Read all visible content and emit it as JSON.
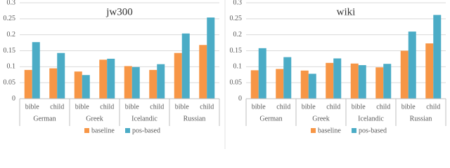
{
  "chart_data": [
    {
      "type": "bar",
      "title": "jw300",
      "groups": [
        "German",
        "Greek",
        "Icelandic",
        "Russian"
      ],
      "categories": [
        "bible",
        "child",
        "bible",
        "child",
        "bible",
        "child",
        "bible",
        "child"
      ],
      "series": [
        {
          "name": "baseline",
          "color": "#f79646",
          "values": [
            0.09,
            0.095,
            0.085,
            0.122,
            0.102,
            0.09,
            0.143,
            0.168
          ]
        },
        {
          "name": "pos-based",
          "color": "#4bacc6",
          "values": [
            0.177,
            0.143,
            0.074,
            0.125,
            0.099,
            0.108,
            0.204,
            0.254
          ]
        }
      ],
      "ylim": [
        0,
        0.3
      ],
      "yticks": [
        0,
        0.05,
        0.1,
        0.15,
        0.2,
        0.25,
        0.3
      ],
      "grid": true,
      "legend": "bottom"
    },
    {
      "type": "bar",
      "title": "wiki",
      "groups": [
        "German",
        "Greek",
        "Icelandic",
        "Russian"
      ],
      "categories": [
        "bible",
        "child",
        "bible",
        "child",
        "bible",
        "child",
        "bible",
        "child"
      ],
      "series": [
        {
          "name": "baseline",
          "color": "#f79646",
          "values": [
            0.089,
            0.093,
            0.088,
            0.112,
            0.11,
            0.098,
            0.15,
            0.173
          ]
        },
        {
          "name": "pos-based",
          "color": "#4bacc6",
          "values": [
            0.158,
            0.13,
            0.078,
            0.126,
            0.105,
            0.109,
            0.21,
            0.262
          ]
        }
      ],
      "ylim": [
        0,
        0.3
      ],
      "yticks": [
        0,
        0.05,
        0.1,
        0.15,
        0.2,
        0.25,
        0.3
      ],
      "grid": true,
      "legend": "bottom"
    }
  ]
}
